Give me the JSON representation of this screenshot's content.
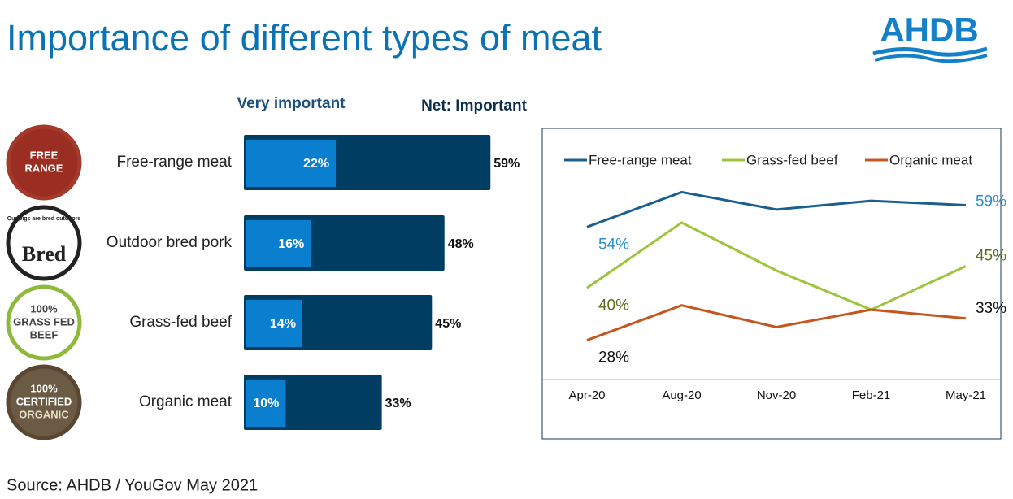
{
  "title": "Importance of different types of meat",
  "logo": "AHDB",
  "source": "Source: AHDB / YouGov May 2021",
  "badges": [
    {
      "lines": [
        "FREE",
        "RANGE"
      ]
    },
    {
      "lines": [
        "Our pigs are bred outdoors",
        "Bred"
      ]
    },
    {
      "lines": [
        "100%",
        "GRASS FED",
        "BEEF"
      ]
    },
    {
      "lines": [
        "100%",
        "CERTIFIED",
        "ORGANIC"
      ]
    }
  ],
  "chart_data": [
    {
      "type": "bar",
      "categories": [
        "Free-range meat",
        "Outdoor bred pork",
        "Grass-fed beef",
        "Organic meat"
      ],
      "xlim": [
        0,
        100
      ],
      "series": [
        {
          "name": "Very important",
          "color": "#0a7fcf",
          "values": [
            22,
            16,
            14,
            10
          ],
          "value_labels": [
            "22%",
            "16%",
            "14%",
            "10%"
          ]
        },
        {
          "name": "Net: Important",
          "color": "#003d63",
          "values": [
            59,
            48,
            45,
            33
          ],
          "value_labels": [
            "59%",
            "48%",
            "45%",
            "33%"
          ]
        }
      ]
    },
    {
      "type": "line",
      "categories": [
        "Apr-20",
        "Aug-20",
        "Nov-20",
        "Feb-21",
        "May-21"
      ],
      "ylim": [
        24,
        66
      ],
      "series": [
        {
          "name": "Free-range meat",
          "color": "#1b5f91",
          "label_color": "#2e8fcf",
          "values": [
            54,
            62,
            58,
            60,
            59
          ],
          "value_labels": [
            "54%",
            null,
            null,
            null,
            "59%"
          ]
        },
        {
          "name": "Grass-fed beef",
          "color": "#9dc43c",
          "label_color": "#5b6b1c",
          "values": [
            40,
            55,
            44,
            35,
            45
          ],
          "value_labels": [
            "40%",
            null,
            null,
            null,
            "45%"
          ]
        },
        {
          "name": "Organic meat",
          "color": "#c5561d",
          "label_color": "#111111",
          "values": [
            28,
            36,
            31,
            35,
            33
          ],
          "value_labels": [
            "28%",
            null,
            null,
            null,
            "33%"
          ]
        }
      ]
    }
  ]
}
